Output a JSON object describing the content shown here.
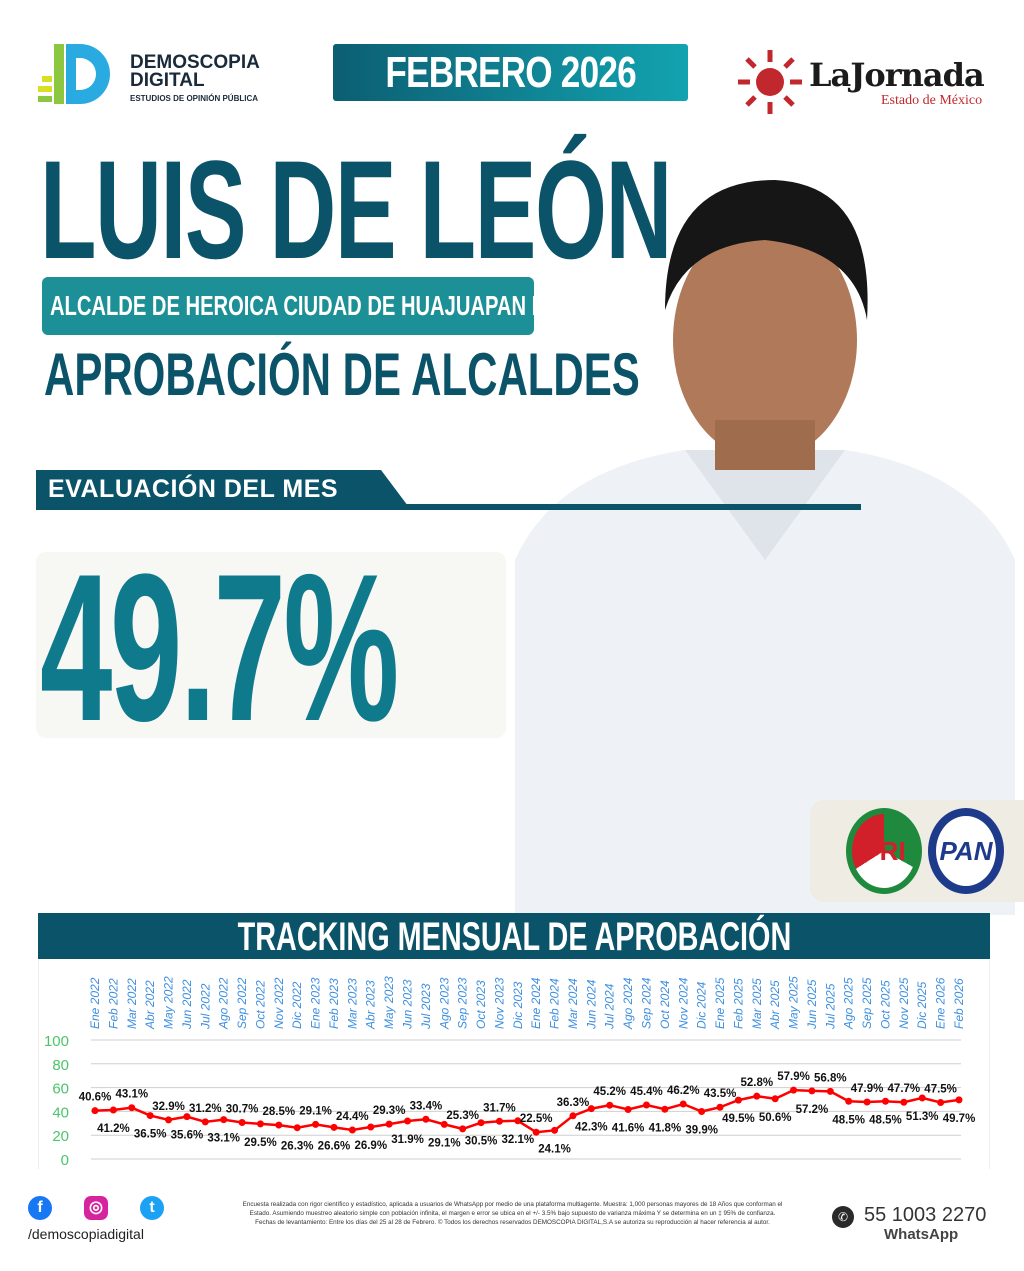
{
  "header": {
    "brand_name_line1": "DEMOSCOPIA",
    "brand_name_line2": "DIGITAL",
    "brand_tagline": "ESTUDIOS DE OPINIÓN PÚBLICA",
    "date": "FEBRERO 2026",
    "partner_name": "LaJornada",
    "partner_sub": "Estado de México"
  },
  "main": {
    "person_name": "LUIS DE LEÓN",
    "role": "ALCALDE DE HEROICA CIUDAD DE HUAJUAPAN DE LEÓN",
    "section_title": "APROBACIÓN DE ALCALDES",
    "evaluation_label": "EVALUACIÓN DEL MES",
    "score": "49.7%",
    "parties": [
      "PRI",
      "PAN"
    ]
  },
  "colors": {
    "primary": "#0b5368",
    "accent": "#0f7a8c",
    "line": "#ff0000",
    "xlabels": "#3d8fe0",
    "ylabels": "#4cc46a"
  },
  "chart_data": {
    "type": "line",
    "title": "TRACKING MENSUAL DE APROBACIÓN",
    "categories": [
      "Ene 2022",
      "Feb 2022",
      "Mar 2022",
      "Abr 2022",
      "May 2022",
      "Jun 2022",
      "Jul 2022",
      "Ago 2022",
      "Sep 2022",
      "Oct 2022",
      "Nov 2022",
      "Dic 2022",
      "Ene 2023",
      "Feb 2023",
      "Mar 2023",
      "Abr 2023",
      "May 2023",
      "Jun 2023",
      "Jul 2023",
      "Ago 2023",
      "Sep 2023",
      "Oct 2023",
      "Nov 2023",
      "Dic 2023",
      "Ene 2024",
      "Feb 2024",
      "Mar 2024",
      "Jun 2024",
      "Jul 2024",
      "Ago 2024",
      "Sep 2024",
      "Oct 2024",
      "Nov 2024",
      "Dic 2024",
      "Ene 2025",
      "Feb 2025",
      "Mar 2025",
      "Abr 2025",
      "May 2025",
      "Jun 2025",
      "Jul 2025",
      "Ago 2025",
      "Sep 2025",
      "Oct 2025",
      "Nov 2025",
      "Dic 2025",
      "Ene 2026",
      "Feb 2026"
    ],
    "values": [
      40.6,
      41.2,
      43.1,
      36.5,
      32.9,
      35.6,
      31.2,
      33.1,
      30.7,
      29.5,
      28.5,
      26.3,
      29.1,
      26.6,
      24.4,
      26.9,
      29.3,
      31.9,
      33.4,
      29.1,
      25.3,
      30.5,
      31.7,
      32.1,
      22.5,
      24.1,
      36.3,
      42.3,
      45.2,
      41.6,
      45.4,
      41.8,
      46.2,
      39.9,
      43.5,
      49.5,
      52.8,
      50.6,
      57.9,
      57.2,
      56.8,
      48.5,
      47.9,
      48.5,
      47.7,
      51.3,
      47.5,
      49.7
    ],
    "data_label_suffix": "%",
    "ylim": [
      0,
      100
    ],
    "yticks": [
      0,
      20,
      40,
      60,
      80,
      100
    ],
    "grid": true,
    "legend": "none"
  },
  "footer": {
    "handle": "/demoscopiadigital",
    "social_icons": [
      "facebook-icon",
      "instagram-icon",
      "twitter-icon"
    ],
    "disclaimer": "Encuesta realizada con rigor científico y estadístico, aplicada a usuarios de WhatsApp por medio de una plataforma multiagente. Muestra: 1,000 personas mayores de 18 Años que conforman el Estado. Asumiendo muestreo aleatorio simple con población infinita, el margen e error se ubica en el +/- 3.5% bajo supuesto de varianza máxima Y se determina en un ‡ 95% de confianza. Fechas de levantamiento: Entre los días del 25 al 28 de Febrero. © Todos los derechos reservados DEMOSCOPIA DIGITAL,S.A se autoriza su reproducción al hacer referencia al autor.",
    "phone": "55 1003 2270",
    "phone_label": "WhatsApp"
  }
}
